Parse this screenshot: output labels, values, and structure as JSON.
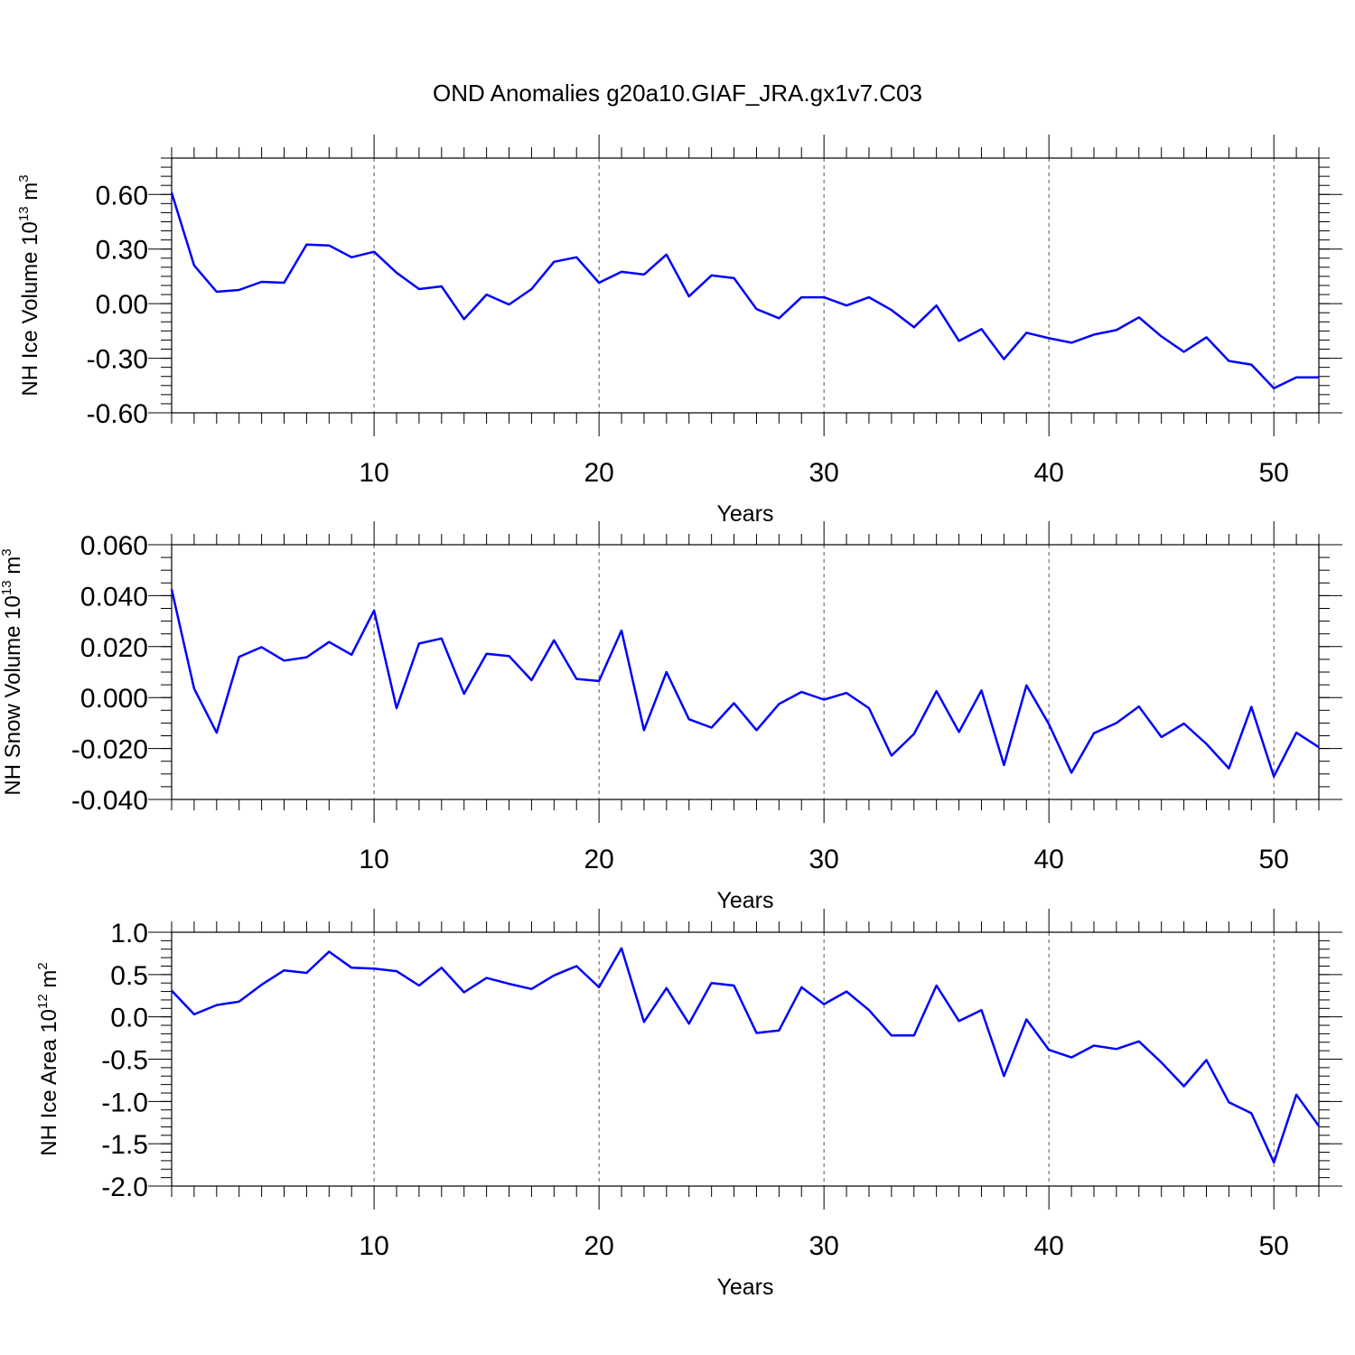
{
  "title": "OND Anomalies g20a10.GIAF_JRA.gx1v7.C03",
  "chart_data": [
    {
      "type": "line",
      "ylabel": "NH Ice Volume 10",
      "ylabel_sup": "13",
      "ylabel_unit": " m",
      "ylabel_unit_sup": "3",
      "xlabel": "Years",
      "xlim": [
        1,
        52
      ],
      "ylim": [
        -0.6,
        0.8
      ],
      "yticks": [
        "0.60",
        "0.30",
        "0.00",
        "-0.30",
        "-0.60"
      ],
      "xticks": [
        "10",
        "20",
        "30",
        "40",
        "50"
      ],
      "grid": "vertical dashed at x ticks",
      "line_color": "#0000ff",
      "x": [
        1,
        2,
        3,
        4,
        5,
        6,
        7,
        8,
        9,
        10,
        11,
        12,
        13,
        14,
        15,
        16,
        17,
        18,
        19,
        20,
        21,
        22,
        23,
        24,
        25,
        26,
        27,
        28,
        29,
        30,
        31,
        32,
        33,
        34,
        35,
        36,
        37,
        38,
        39,
        40,
        41,
        42,
        43,
        44,
        45,
        46,
        47,
        48,
        49,
        50,
        51,
        52
      ],
      "values": [
        0.61,
        0.21,
        0.065,
        0.075,
        0.12,
        0.115,
        0.325,
        0.32,
        0.255,
        0.285,
        0.17,
        0.08,
        0.095,
        -0.085,
        0.05,
        -0.005,
        0.08,
        0.23,
        0.255,
        0.115,
        0.175,
        0.16,
        0.27,
        0.04,
        0.155,
        0.14,
        -0.03,
        -0.08,
        0.035,
        0.035,
        -0.01,
        0.035,
        -0.035,
        -0.13,
        -0.01,
        -0.205,
        -0.14,
        -0.305,
        -0.16,
        -0.19,
        -0.215,
        -0.17,
        -0.145,
        -0.075,
        -0.18,
        -0.265,
        -0.185,
        -0.315,
        -0.335,
        -0.465,
        -0.405,
        -0.405
      ]
    },
    {
      "type": "line",
      "ylabel": "NH Snow Volume 10",
      "ylabel_sup": "13",
      "ylabel_unit": " m",
      "ylabel_unit_sup": "3",
      "xlabel": "Years",
      "xlim": [
        1,
        52
      ],
      "ylim": [
        -0.04,
        0.06
      ],
      "yticks": [
        "0.060",
        "0.040",
        "0.020",
        "0.000",
        "-0.020",
        "-0.040"
      ],
      "xticks": [
        "10",
        "20",
        "30",
        "40",
        "50"
      ],
      "grid": "vertical dashed at x ticks",
      "line_color": "#0000ff",
      "x": [
        1,
        2,
        3,
        4,
        5,
        6,
        7,
        8,
        9,
        10,
        11,
        12,
        13,
        14,
        15,
        16,
        17,
        18,
        19,
        20,
        21,
        22,
        23,
        24,
        25,
        26,
        27,
        28,
        29,
        30,
        31,
        32,
        33,
        34,
        35,
        36,
        37,
        38,
        39,
        40,
        41,
        42,
        43,
        44,
        45,
        46,
        47,
        48,
        49,
        50,
        51,
        52
      ],
      "values": [
        0.0425,
        0.0035,
        -0.0138,
        0.016,
        0.0198,
        0.0145,
        0.0158,
        0.0218,
        0.0168,
        0.0342,
        -0.0042,
        0.0212,
        0.0232,
        0.0015,
        0.0172,
        0.0163,
        0.0068,
        0.0225,
        0.0073,
        0.0065,
        0.0263,
        -0.0128,
        0.01,
        -0.0085,
        -0.0118,
        -0.0022,
        -0.0128,
        -0.0025,
        0.0022,
        -0.0008,
        0.0018,
        -0.0042,
        -0.0228,
        -0.0143,
        0.0025,
        -0.0135,
        0.0028,
        -0.0265,
        0.0048,
        -0.0105,
        -0.0295,
        -0.014,
        -0.01,
        -0.0035,
        -0.0155,
        -0.0102,
        -0.0182,
        -0.0278,
        -0.0037,
        -0.031,
        -0.0138,
        -0.0195
      ]
    },
    {
      "type": "line",
      "ylabel": "NH Ice Area 10",
      "ylabel_sup": "12",
      "ylabel_unit": " m",
      "ylabel_unit_sup": "2",
      "xlabel": "Years",
      "xlim": [
        1,
        52
      ],
      "ylim": [
        -2.0,
        1.0
      ],
      "yticks": [
        "1.0",
        "0.5",
        "0.0",
        "-0.5",
        "-1.0",
        "-1.5",
        "-2.0"
      ],
      "xticks": [
        "10",
        "20",
        "30",
        "40",
        "50"
      ],
      "grid": "vertical dashed at x ticks",
      "line_color": "#0000ff",
      "x": [
        1,
        2,
        3,
        4,
        5,
        6,
        7,
        8,
        9,
        10,
        11,
        12,
        13,
        14,
        15,
        16,
        17,
        18,
        19,
        20,
        21,
        22,
        23,
        24,
        25,
        26,
        27,
        28,
        29,
        30,
        31,
        32,
        33,
        34,
        35,
        36,
        37,
        38,
        39,
        40,
        41,
        42,
        43,
        44,
        45,
        46,
        47,
        48,
        49,
        50,
        51,
        52
      ],
      "values": [
        0.31,
        0.03,
        0.14,
        0.18,
        0.38,
        0.55,
        0.52,
        0.77,
        0.58,
        0.57,
        0.54,
        0.37,
        0.58,
        0.29,
        0.46,
        0.39,
        0.33,
        0.49,
        0.6,
        0.35,
        0.81,
        -0.06,
        0.34,
        -0.08,
        0.4,
        0.37,
        -0.19,
        -0.16,
        0.35,
        0.15,
        0.3,
        0.08,
        -0.22,
        -0.22,
        0.37,
        -0.05,
        0.08,
        -0.7,
        -0.03,
        -0.39,
        -0.48,
        -0.34,
        -0.38,
        -0.29,
        -0.54,
        -0.82,
        -0.51,
        -1.01,
        -1.14,
        -1.72,
        -0.92,
        -1.29
      ]
    }
  ]
}
